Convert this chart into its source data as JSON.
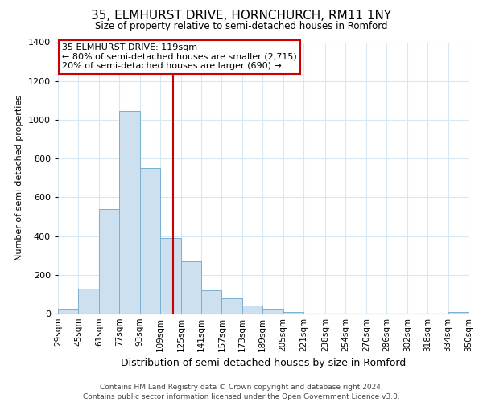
{
  "title": "35, ELMHURST DRIVE, HORNCHURCH, RM11 1NY",
  "subtitle": "Size of property relative to semi-detached houses in Romford",
  "xlabel": "Distribution of semi-detached houses by size in Romford",
  "ylabel": "Number of semi-detached properties",
  "footer_line1": "Contains HM Land Registry data © Crown copyright and database right 2024.",
  "footer_line2": "Contains public sector information licensed under the Open Government Licence v3.0.",
  "annotation_line1": "35 ELMHURST DRIVE: 119sqm",
  "annotation_line2": "← 80% of semi-detached houses are smaller (2,715)",
  "annotation_line3": "20% of semi-detached houses are larger (690) →",
  "bar_color": "#cce0f0",
  "bar_edge_color": "#7ab0d0",
  "vline_color": "#cc0000",
  "annotation_box_edge_color": "#cc0000",
  "bin_edges": [
    29,
    45,
    61,
    77,
    93,
    109,
    125,
    141,
    157,
    173,
    189,
    205,
    221,
    238,
    254,
    270,
    286,
    302,
    318,
    334,
    350
  ],
  "bin_labels": [
    "29sqm",
    "45sqm",
    "61sqm",
    "77sqm",
    "93sqm",
    "109sqm",
    "125sqm",
    "141sqm",
    "157sqm",
    "173sqm",
    "189sqm",
    "205sqm",
    "221sqm",
    "238sqm",
    "254sqm",
    "270sqm",
    "286sqm",
    "302sqm",
    "318sqm",
    "334sqm",
    "350sqm"
  ],
  "bar_heights": [
    25,
    130,
    540,
    1045,
    750,
    390,
    270,
    120,
    80,
    40,
    25,
    10,
    0,
    0,
    0,
    0,
    0,
    0,
    0,
    10
  ],
  "vline_x": 119,
  "ylim": [
    0,
    1400
  ],
  "yticks": [
    0,
    200,
    400,
    600,
    800,
    1000,
    1200,
    1400
  ],
  "grid_color": "#d8e8f0",
  "background_color": "#ffffff"
}
